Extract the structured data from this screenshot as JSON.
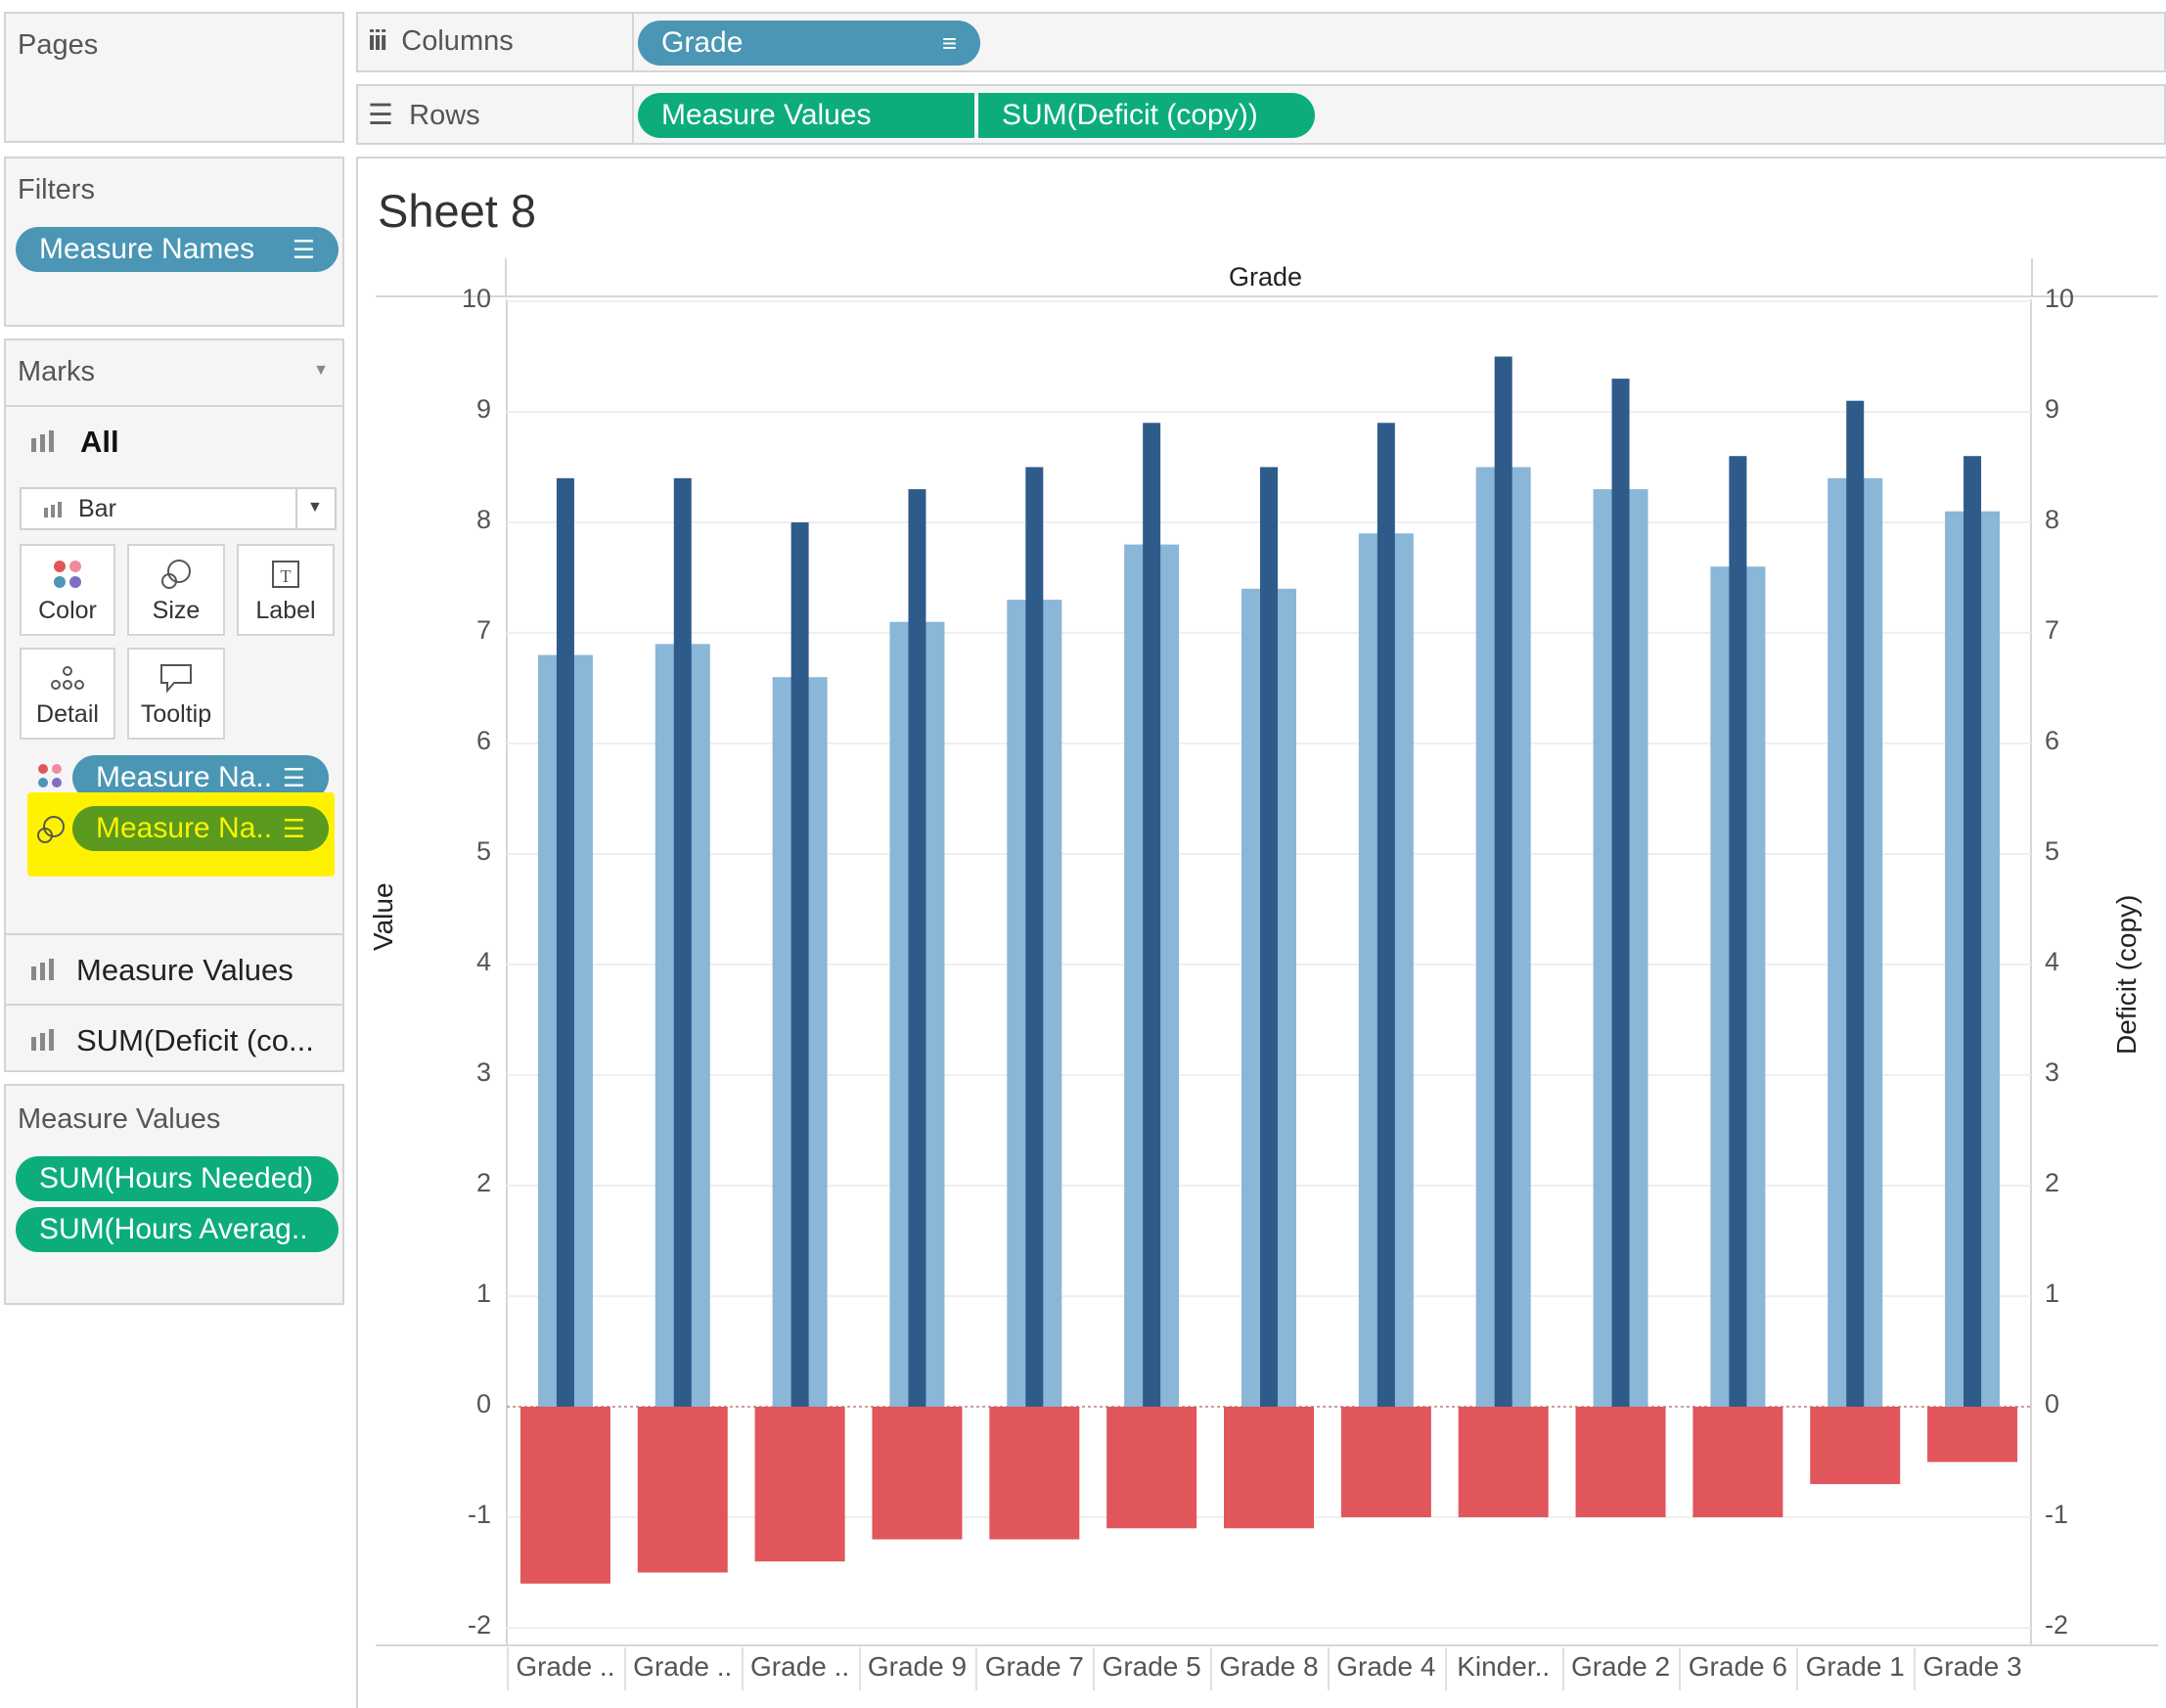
{
  "pages": {
    "title": "Pages"
  },
  "filters": {
    "title": "Filters",
    "pill": "Measure Names"
  },
  "marks": {
    "title": "Marks",
    "all_label": "All",
    "mark_type": "Bar",
    "cards": [
      "Color",
      "Size",
      "Label",
      "Detail",
      "Tooltip"
    ],
    "pill_color": "Measure Na..",
    "pill_size": "Measure Na..",
    "rows": [
      "Measure Values",
      "SUM(Deficit (co..."
    ]
  },
  "measure_values": {
    "title": "Measure Values",
    "pills": [
      "SUM(Hours Needed)",
      "SUM(Hours Averag.."
    ]
  },
  "shelves": {
    "columns_label": "Columns",
    "rows_label": "Rows",
    "columns_pill": "Grade",
    "rows_pills": [
      "Measure Values",
      "SUM(Deficit (copy))"
    ]
  },
  "sheet": {
    "title": "Sheet 8",
    "header": "Grade"
  },
  "colors": {
    "light_bar": "#8ab6d8",
    "dark_bar": "#2e5b8a",
    "red_bar": "#e0565b",
    "highlight": "#fff200"
  },
  "chart_data": {
    "type": "bar",
    "categories": [
      "Grade ..",
      "Grade ..",
      "Grade ..",
      "Grade 9",
      "Grade 7",
      "Grade 5",
      "Grade 8",
      "Grade 4",
      "Kinder..",
      "Grade 2",
      "Grade 6",
      "Grade 1",
      "Grade 3"
    ],
    "ylabel": "Value",
    "y2label": "Deficit (copy)",
    "ylim": [
      -2,
      10
    ],
    "yticks": [
      10,
      9,
      8,
      7,
      6,
      5,
      4,
      3,
      2,
      1,
      0,
      -1,
      -2
    ],
    "series": [
      {
        "values": [
          6.8,
          6.9,
          6.6,
          7.1,
          7.3,
          7.8,
          7.4,
          7.9,
          8.5,
          8.3,
          7.6,
          8.4,
          8.1
        ]
      },
      {
        "values": [
          8.4,
          8.4,
          8.0,
          8.3,
          8.5,
          8.9,
          8.5,
          8.9,
          9.5,
          9.3,
          8.6,
          9.1,
          8.6
        ]
      },
      {
        "values": [
          -1.6,
          -1.5,
          -1.4,
          -1.2,
          -1.2,
          -1.1,
          -1.1,
          -1.0,
          -1.0,
          -1.0,
          -1.0,
          -0.7,
          -0.5
        ]
      }
    ]
  }
}
